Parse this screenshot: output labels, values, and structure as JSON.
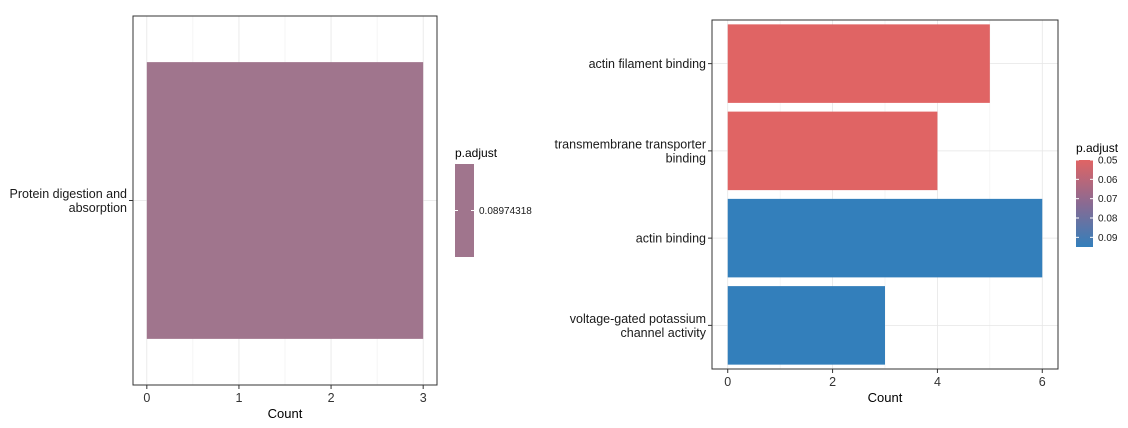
{
  "chart_data": [
    {
      "type": "bar",
      "orientation": "horizontal",
      "categories": [
        "Protein digestion and absorption"
      ],
      "category_lines": [
        [
          "Protein digestion and",
          "absorption"
        ]
      ],
      "values": [
        3
      ],
      "color_values": [
        0.08974318
      ],
      "colors": [
        "#a0758d"
      ],
      "xlabel": "Count",
      "ylabel": "",
      "xlim": [
        -0.15,
        3.15
      ],
      "xticks": [
        0,
        1,
        2,
        3
      ],
      "grid": true,
      "legend": {
        "title": "p.adjust",
        "placement": "right",
        "labels": [
          "0.08974318"
        ],
        "color": "#a0758d"
      }
    },
    {
      "type": "bar",
      "orientation": "horizontal",
      "categories": [
        "actin filament binding",
        "transmembrane transporter binding",
        "actin binding",
        "voltage-gated potassium channel activity"
      ],
      "category_lines": [
        [
          "actin filament binding"
        ],
        [
          "transmembrane transporter",
          "binding"
        ],
        [
          "actin binding"
        ],
        [
          "voltage-gated potassium",
          "channel activity"
        ]
      ],
      "values": [
        5,
        4,
        6,
        3
      ],
      "color_values": [
        0.05,
        0.05,
        0.095,
        0.095
      ],
      "colors": [
        "#e06464",
        "#e06464",
        "#337fbb",
        "#337fbb"
      ],
      "xlabel": "Count",
      "ylabel": "",
      "xlim": [
        -0.3,
        6.3
      ],
      "xticks": [
        0,
        2,
        4,
        6
      ],
      "grid": true,
      "legend": {
        "title": "p.adjust",
        "placement": "right",
        "labels": [
          "0.05",
          "0.06",
          "0.07",
          "0.08",
          "0.09"
        ],
        "low_color": "#e06464",
        "high_color": "#337fbb"
      }
    }
  ]
}
